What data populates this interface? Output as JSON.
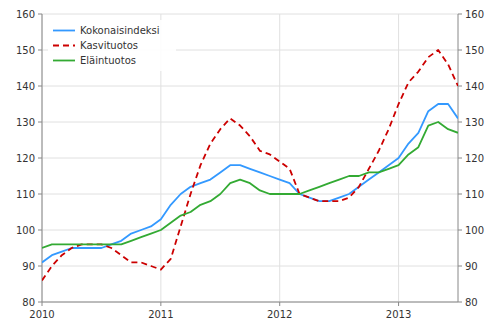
{
  "chart_data": {
    "type": "line",
    "categories": [
      "2010",
      null,
      null,
      null,
      null,
      null,
      null,
      null,
      null,
      null,
      null,
      null,
      "2011",
      null,
      null,
      null,
      null,
      null,
      null,
      null,
      null,
      null,
      null,
      null,
      "2012",
      null,
      null,
      null,
      null,
      null,
      null,
      null,
      null,
      null,
      null,
      null,
      "2013",
      null,
      null,
      null,
      null,
      null,
      null
    ],
    "series": [
      {
        "name": "Kokonaisindeksi",
        "color": "#3399ff",
        "line_style": "solid",
        "values": [
          91,
          93,
          94,
          95,
          95,
          95,
          95,
          96,
          97,
          99,
          100,
          101,
          103,
          107,
          110,
          112,
          113,
          114,
          116,
          118,
          118,
          117,
          116,
          115,
          114,
          113,
          110,
          109,
          108,
          108,
          109,
          110,
          112,
          114,
          116,
          118,
          120,
          124,
          127,
          133,
          135,
          135,
          131
        ]
      },
      {
        "name": "Kasvituotos",
        "color": "#cc0000",
        "line_style": "dashed",
        "values": [
          86,
          90,
          93,
          95,
          96,
          96,
          96,
          95,
          93,
          91,
          91,
          90,
          89,
          92,
          101,
          110,
          118,
          124,
          128,
          131,
          129,
          126,
          122,
          121,
          119,
          117,
          110,
          109,
          108,
          108,
          108,
          109,
          112,
          117,
          122,
          128,
          135,
          141,
          144,
          148,
          150,
          146,
          140
        ]
      },
      {
        "name": "Eläintuotos",
        "color": "#33aa33",
        "line_style": "solid",
        "values": [
          95,
          96,
          96,
          96,
          96,
          96,
          96,
          96,
          96,
          97,
          98,
          99,
          100,
          102,
          104,
          105,
          107,
          108,
          110,
          113,
          114,
          113,
          111,
          110,
          110,
          110,
          110,
          111,
          112,
          113,
          114,
          115,
          115,
          116,
          116,
          117,
          118,
          121,
          123,
          129,
          130,
          128,
          127
        ]
      }
    ],
    "ylim": [
      80,
      160
    ],
    "yticks": [
      80,
      90,
      100,
      110,
      120,
      130,
      140,
      150,
      160
    ],
    "y2lim": [
      80,
      160
    ],
    "y2ticks": [
      80,
      90,
      100,
      110,
      120,
      130,
      140,
      150,
      160
    ],
    "grid": true,
    "legend": "upper-left"
  }
}
